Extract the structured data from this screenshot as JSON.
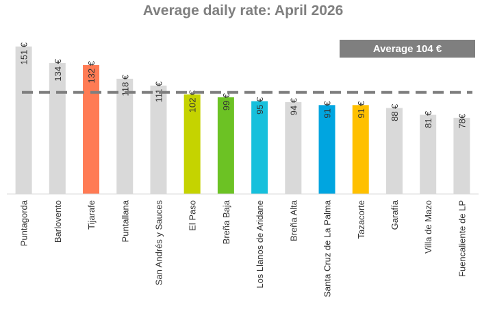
{
  "chart_data": {
    "type": "bar",
    "title": "Average daily rate:  April 2026",
    "categories": [
      "Puntagorda",
      "Barlovento",
      "Tijarafe",
      "Puntallana",
      "San Andrés y Sauces",
      "El Paso",
      "Breña Baja",
      "Los Llanos de Aridane",
      "Breña Alta",
      "Santa Cruz de La Palma",
      "Tazacorte",
      "Garafía",
      "Villa de Mazo",
      "Fuencaliente de LP"
    ],
    "values": [
      151,
      134,
      132,
      118,
      111,
      102,
      99,
      95,
      94,
      91,
      91,
      88,
      81,
      78
    ],
    "value_labels": [
      "151 €",
      "134 €",
      "132 €",
      "118 €",
      "111 €",
      "102 €",
      "99 €",
      "95 €",
      "94 €",
      "91 €",
      "91 €",
      "88 €",
      "81 €",
      "78€"
    ],
    "colors": [
      "#d9d9d9",
      "#d9d9d9",
      "#ff7b54",
      "#d9d9d9",
      "#d9d9d9",
      "#c5d300",
      "#6cc224",
      "#17c0dc",
      "#d9d9d9",
      "#00a5e0",
      "#ffc000",
      "#d9d9d9",
      "#d9d9d9",
      "#d9d9d9"
    ],
    "average": 104,
    "average_label": "Average 104 €",
    "ylim": [
      0,
      160
    ]
  }
}
